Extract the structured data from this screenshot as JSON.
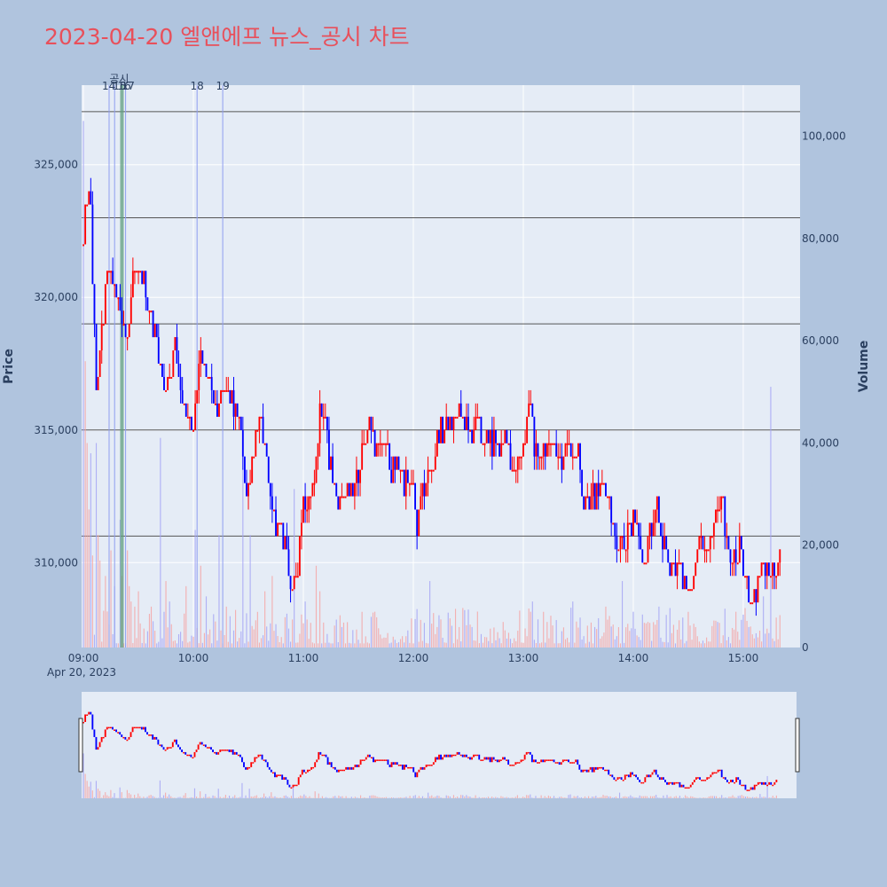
{
  "title": "2023-04-20 엘앤에프 뉴스_공시 차트",
  "colors": {
    "page_bg": "#b0c4de",
    "plot_bg": "#e5ecf6",
    "title": "#e8505b",
    "up": "#ff0000",
    "down": "#0000ff",
    "up_volume": "#f4a6a6",
    "down_volume": "#a6a6f4",
    "event_line": "#8f9ef0",
    "event_band": "#5f9f7f",
    "hline": "#555555",
    "axis_text": "#2a3f5f"
  },
  "chart_data": {
    "type": "candlestick",
    "xlabel": "",
    "ylabel_left": "Price",
    "ylabel_right": "Volume",
    "x_date_label": "Apr 20, 2023",
    "x_ticks": [
      "09:00",
      "10:00",
      "11:00",
      "12:00",
      "13:00",
      "14:00",
      "15:00"
    ],
    "y_ticks": [
      310000,
      315000,
      320000,
      325000
    ],
    "y_tick_labels": [
      "310,000",
      "315,000",
      "320,000",
      "325,000"
    ],
    "y_range": [
      306800,
      328000
    ],
    "volume_ticks": [
      0,
      20000,
      40000,
      60000,
      80000,
      100000
    ],
    "volume_tick_labels": [
      "0",
      "20,000",
      "40,000",
      "60,000",
      "80,000",
      "100,000"
    ],
    "volume_range": [
      0,
      110000
    ],
    "x_range_minutes": [
      "08:59",
      "15:31"
    ],
    "price_path": [
      {
        "t": "09:00",
        "p": 322000
      },
      {
        "t": "09:02",
        "p": 324000
      },
      {
        "t": "09:04",
        "p": 323000
      },
      {
        "t": "09:07",
        "p": 316500
      },
      {
        "t": "09:10",
        "p": 318500
      },
      {
        "t": "09:13",
        "p": 321000
      },
      {
        "t": "09:17",
        "p": 320500
      },
      {
        "t": "09:20",
        "p": 319500
      },
      {
        "t": "09:24",
        "p": 318500
      },
      {
        "t": "09:27",
        "p": 320500
      },
      {
        "t": "09:32",
        "p": 321000
      },
      {
        "t": "09:36",
        "p": 319500
      },
      {
        "t": "09:41",
        "p": 318000
      },
      {
        "t": "09:44",
        "p": 316500
      },
      {
        "t": "09:50",
        "p": 318000
      },
      {
        "t": "09:55",
        "p": 316000
      },
      {
        "t": "10:00",
        "p": 315000
      },
      {
        "t": "10:04",
        "p": 318000
      },
      {
        "t": "10:08",
        "p": 317000
      },
      {
        "t": "10:12",
        "p": 315500
      },
      {
        "t": "10:16",
        "p": 316500
      },
      {
        "t": "10:20",
        "p": 316000
      },
      {
        "t": "10:25",
        "p": 315500
      },
      {
        "t": "10:27",
        "p": 314000
      },
      {
        "t": "10:29",
        "p": 312500
      },
      {
        "t": "10:32",
        "p": 314000
      },
      {
        "t": "10:36",
        "p": 315500
      },
      {
        "t": "10:40",
        "p": 313500
      },
      {
        "t": "10:43",
        "p": 312000
      },
      {
        "t": "10:47",
        "p": 311000
      },
      {
        "t": "10:51",
        "p": 310500
      },
      {
        "t": "10:54",
        "p": 308500
      },
      {
        "t": "10:57",
        "p": 310000
      },
      {
        "t": "11:00",
        "p": 312500
      },
      {
        "t": "11:04",
        "p": 312500
      },
      {
        "t": "11:07",
        "p": 314000
      },
      {
        "t": "11:09",
        "p": 316000
      },
      {
        "t": "11:12",
        "p": 315000
      },
      {
        "t": "11:15",
        "p": 313500
      },
      {
        "t": "11:18",
        "p": 312500
      },
      {
        "t": "11:25",
        "p": 312500
      },
      {
        "t": "11:30",
        "p": 313500
      },
      {
        "t": "11:33",
        "p": 314500
      },
      {
        "t": "11:36",
        "p": 315500
      },
      {
        "t": "11:40",
        "p": 314000
      },
      {
        "t": "11:44",
        "p": 314500
      },
      {
        "t": "11:48",
        "p": 313500
      },
      {
        "t": "11:53",
        "p": 313500
      },
      {
        "t": "11:56",
        "p": 313000
      },
      {
        "t": "12:00",
        "p": 312500
      },
      {
        "t": "12:02",
        "p": 311500
      },
      {
        "t": "12:05",
        "p": 312500
      },
      {
        "t": "12:10",
        "p": 313500
      },
      {
        "t": "12:14",
        "p": 315000
      },
      {
        "t": "12:18",
        "p": 315000
      },
      {
        "t": "12:22",
        "p": 315500
      },
      {
        "t": "12:26",
        "p": 315500
      },
      {
        "t": "12:30",
        "p": 315000
      },
      {
        "t": "12:35",
        "p": 315000
      },
      {
        "t": "12:40",
        "p": 314500
      },
      {
        "t": "12:45",
        "p": 314500
      },
      {
        "t": "12:50",
        "p": 314500
      },
      {
        "t": "12:55",
        "p": 313500
      },
      {
        "t": "13:00",
        "p": 314500
      },
      {
        "t": "13:03",
        "p": 316000
      },
      {
        "t": "13:06",
        "p": 314500
      },
      {
        "t": "13:10",
        "p": 314000
      },
      {
        "t": "13:15",
        "p": 314500
      },
      {
        "t": "13:20",
        "p": 314000
      },
      {
        "t": "13:25",
        "p": 314500
      },
      {
        "t": "13:30",
        "p": 314000
      },
      {
        "t": "13:33",
        "p": 312500
      },
      {
        "t": "13:38",
        "p": 312500
      },
      {
        "t": "13:43",
        "p": 313000
      },
      {
        "t": "13:47",
        "p": 312500
      },
      {
        "t": "13:50",
        "p": 311000
      },
      {
        "t": "13:55",
        "p": 311000
      },
      {
        "t": "14:00",
        "p": 311500
      },
      {
        "t": "14:03",
        "p": 311000
      },
      {
        "t": "14:06",
        "p": 310000
      },
      {
        "t": "14:09",
        "p": 311000
      },
      {
        "t": "14:13",
        "p": 312000
      },
      {
        "t": "14:16",
        "p": 311000
      },
      {
        "t": "14:19",
        "p": 310000
      },
      {
        "t": "14:23",
        "p": 310000
      },
      {
        "t": "14:26",
        "p": 309500
      },
      {
        "t": "14:30",
        "p": 309000
      },
      {
        "t": "14:34",
        "p": 310000
      },
      {
        "t": "14:37",
        "p": 311000
      },
      {
        "t": "14:40",
        "p": 310000
      },
      {
        "t": "14:45",
        "p": 311500
      },
      {
        "t": "14:48",
        "p": 312500
      },
      {
        "t": "14:51",
        "p": 311000
      },
      {
        "t": "14:54",
        "p": 310000
      },
      {
        "t": "14:58",
        "p": 310500
      },
      {
        "t": "15:01",
        "p": 309500
      },
      {
        "t": "15:04",
        "p": 308500
      },
      {
        "t": "15:07",
        "p": 309000
      },
      {
        "t": "15:10",
        "p": 310000
      },
      {
        "t": "15:13",
        "p": 309500
      },
      {
        "t": "15:20",
        "p": 310000
      }
    ],
    "volume_spikes": [
      {
        "t": "09:00",
        "v": 103000,
        "dir": "down"
      },
      {
        "t": "09:01",
        "v": 56000,
        "dir": "up"
      },
      {
        "t": "09:02",
        "v": 40000,
        "dir": "up"
      },
      {
        "t": "09:03",
        "v": 27000,
        "dir": "up"
      },
      {
        "t": "09:04",
        "v": 38000,
        "dir": "down"
      },
      {
        "t": "09:05",
        "v": 18000,
        "dir": "up"
      },
      {
        "t": "09:07",
        "v": 40000,
        "dir": "down"
      },
      {
        "t": "09:08",
        "v": 22000,
        "dir": "up"
      },
      {
        "t": "09:09",
        "v": 17000,
        "dir": "up"
      },
      {
        "t": "09:12",
        "v": 14000,
        "dir": "up"
      },
      {
        "t": "09:15",
        "v": 19000,
        "dir": "up"
      },
      {
        "t": "09:17",
        "v": 12000,
        "dir": "down"
      },
      {
        "t": "09:20",
        "v": 25000,
        "dir": "down"
      },
      {
        "t": "09:21",
        "v": 14000,
        "dir": "up"
      },
      {
        "t": "09:24",
        "v": 19000,
        "dir": "up"
      },
      {
        "t": "09:25",
        "v": 12000,
        "dir": "up"
      },
      {
        "t": "09:26",
        "v": 9000,
        "dir": "up"
      },
      {
        "t": "09:28",
        "v": 8000,
        "dir": "up"
      },
      {
        "t": "09:30",
        "v": 11000,
        "dir": "up"
      },
      {
        "t": "09:37",
        "v": 8000,
        "dir": "up"
      },
      {
        "t": "09:42",
        "v": 41000,
        "dir": "down"
      },
      {
        "t": "09:45",
        "v": 13000,
        "dir": "up"
      },
      {
        "t": "09:47",
        "v": 9000,
        "dir": "down"
      },
      {
        "t": "09:56",
        "v": 12000,
        "dir": "up"
      },
      {
        "t": "10:01",
        "v": 23000,
        "dir": "down"
      },
      {
        "t": "10:04",
        "v": 16000,
        "dir": "up"
      },
      {
        "t": "10:07",
        "v": 10000,
        "dir": "down"
      },
      {
        "t": "10:14",
        "v": 22000,
        "dir": "down"
      },
      {
        "t": "10:18",
        "v": 8000,
        "dir": "up"
      },
      {
        "t": "10:27",
        "v": 35000,
        "dir": "down"
      },
      {
        "t": "10:31",
        "v": 22000,
        "dir": "down"
      },
      {
        "t": "10:39",
        "v": 11000,
        "dir": "up"
      },
      {
        "t": "10:43",
        "v": 14000,
        "dir": "up"
      },
      {
        "t": "10:55",
        "v": 31000,
        "dir": "down"
      },
      {
        "t": "11:01",
        "v": 9000,
        "dir": "down"
      },
      {
        "t": "11:07",
        "v": 16000,
        "dir": "up"
      },
      {
        "t": "11:09",
        "v": 11000,
        "dir": "up"
      },
      {
        "t": "11:21",
        "v": 4000,
        "dir": "down"
      },
      {
        "t": "11:37",
        "v": 6000,
        "dir": "down"
      },
      {
        "t": "11:39",
        "v": 7000,
        "dir": "up"
      },
      {
        "t": "12:09",
        "v": 13000,
        "dir": "down"
      },
      {
        "t": "12:13",
        "v": 4000,
        "dir": "up"
      },
      {
        "t": "12:25",
        "v": 4000,
        "dir": "up"
      },
      {
        "t": "12:49",
        "v": 5000,
        "dir": "up"
      },
      {
        "t": "13:04",
        "v": 7000,
        "dir": "up"
      },
      {
        "t": "13:05",
        "v": 9000,
        "dir": "down"
      },
      {
        "t": "13:13",
        "v": 5000,
        "dir": "up"
      },
      {
        "t": "13:27",
        "v": 9000,
        "dir": "down"
      },
      {
        "t": "13:45",
        "v": 8000,
        "dir": "up"
      },
      {
        "t": "13:54",
        "v": 13000,
        "dir": "down"
      },
      {
        "t": "14:00",
        "v": 7000,
        "dir": "down"
      },
      {
        "t": "14:08",
        "v": 5000,
        "dir": "up"
      },
      {
        "t": "14:14",
        "v": 8000,
        "dir": "down"
      },
      {
        "t": "14:34",
        "v": 4000,
        "dir": "up"
      },
      {
        "t": "14:46",
        "v": 5000,
        "dir": "down"
      },
      {
        "t": "14:56",
        "v": 7000,
        "dir": "up"
      },
      {
        "t": "15:11",
        "v": 10000,
        "dir": "down"
      },
      {
        "t": "15:15",
        "v": 51000,
        "dir": "down"
      }
    ],
    "hlines": [
      327000,
      323000,
      319000,
      315000,
      311000
    ],
    "events": [
      {
        "t": "09:14",
        "label": "14",
        "kind": "line"
      },
      {
        "t": "09:17",
        "label": "15",
        "kind": "line"
      },
      {
        "t": "09:21",
        "label": "16",
        "kind": "band"
      },
      {
        "t": "09:23",
        "label": "17",
        "kind": "line"
      },
      {
        "t": "10:02",
        "label": "18",
        "kind": "line"
      },
      {
        "t": "10:16",
        "label": "19",
        "kind": "line"
      }
    ],
    "event_overlap_label": "공시"
  }
}
